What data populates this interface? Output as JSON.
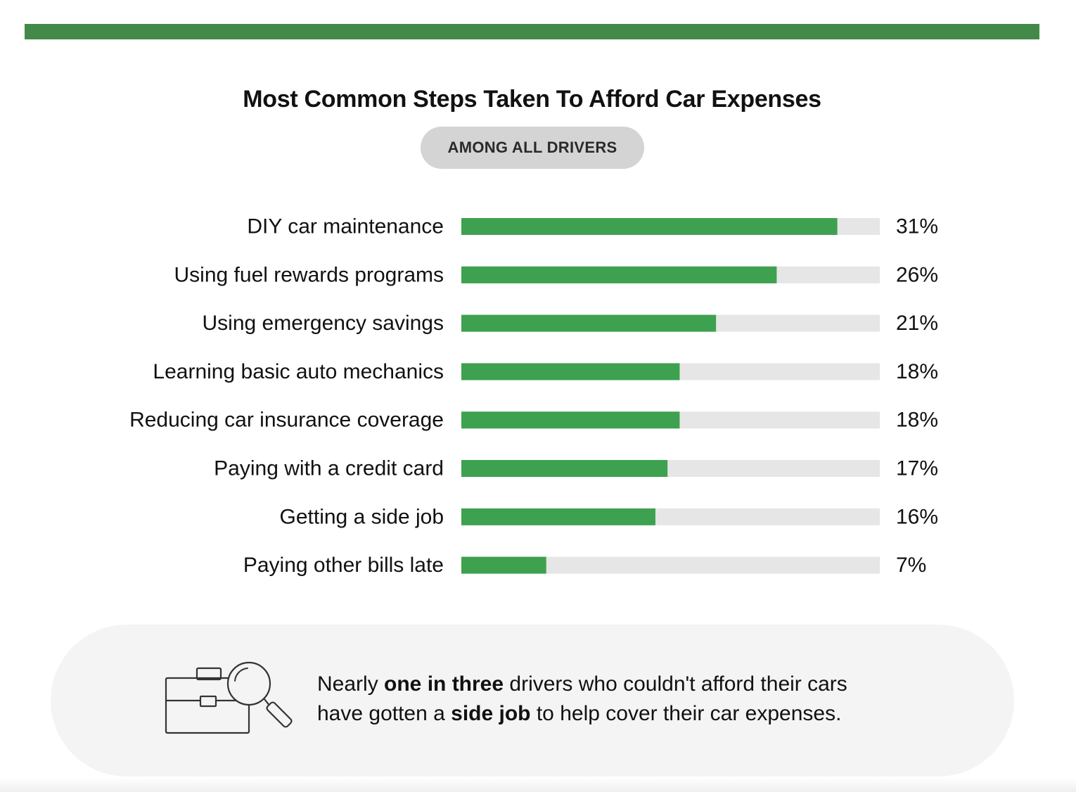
{
  "header": {
    "title": "Most Common Steps Taken To Afford Car Expenses",
    "subtitle": "AMONG ALL DRIVERS"
  },
  "colors": {
    "band": "#438a48",
    "bar_fill": "#3ea14f",
    "bar_track": "#e6e6e6"
  },
  "chart_data": {
    "type": "bar",
    "orientation": "horizontal",
    "title": "Most Common Steps Taken To Afford Car Expenses",
    "subtitle": "AMONG ALL DRIVERS",
    "categories": [
      "DIY car maintenance",
      "Using fuel rewards programs",
      "Using emergency savings",
      "Learning basic auto mechanics",
      "Reducing car insurance coverage",
      "Paying with a credit card",
      "Getting a side job",
      "Paying other bills late"
    ],
    "values": [
      31,
      26,
      21,
      18,
      18,
      17,
      16,
      7
    ],
    "value_labels": [
      "31%",
      "26%",
      "21%",
      "18%",
      "18%",
      "17%",
      "16%",
      "7%"
    ],
    "unit": "%",
    "xlim": [
      0,
      34.5
    ],
    "grid": false,
    "legend": "none"
  },
  "callout": {
    "icon": "briefcase-magnifier-icon",
    "line1_pre": "Nearly ",
    "line1_bold": "one in three",
    "line1_post": " drivers who couldn't afford their cars",
    "line2_pre": "have gotten a ",
    "line2_bold": "side job",
    "line2_post": " to help cover their car expenses."
  }
}
